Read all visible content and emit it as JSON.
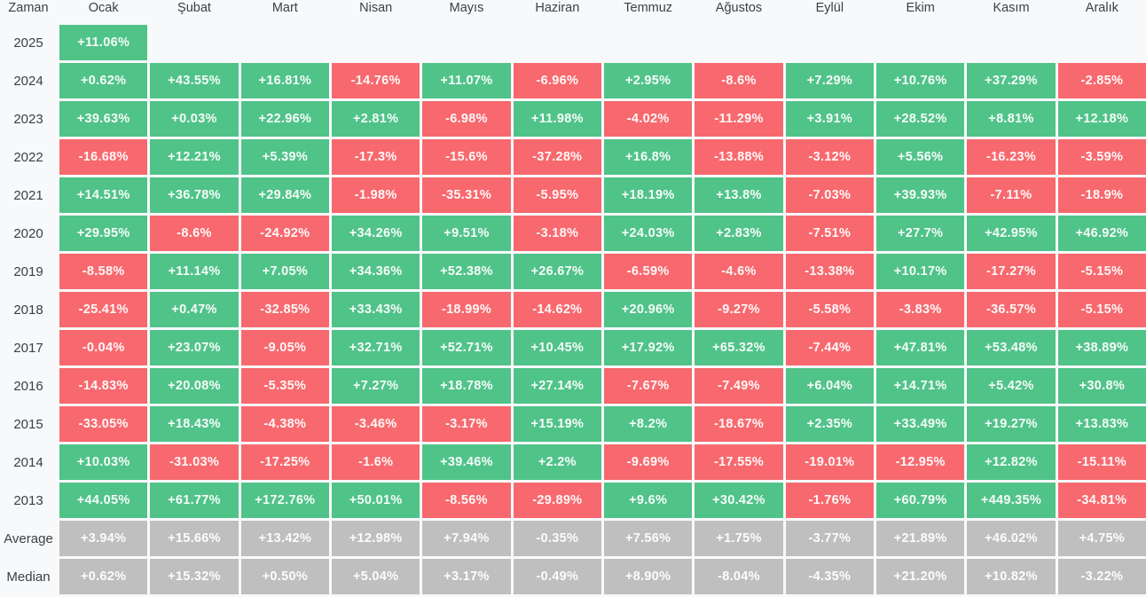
{
  "header": {
    "time_label": "Zaman",
    "months": [
      "Ocak",
      "Şubat",
      "Mart",
      "Nisan",
      "Mayıs",
      "Haziran",
      "Temmuz",
      "Ağustos",
      "Eylül",
      "Ekim",
      "Kasım",
      "Aralık"
    ]
  },
  "colors": {
    "positive": "#50c389",
    "negative": "#f7696e",
    "summary": "#bfbfbf",
    "page_background": "#f8f9fa",
    "cell_text": "#ffffff",
    "label_text": "#3c4043"
  },
  "table": {
    "rows": [
      {
        "label": "2025",
        "type": "year",
        "cells": [
          "+11.06%",
          "",
          "",
          "",
          "",
          "",
          "",
          "",
          "",
          "",
          "",
          ""
        ]
      },
      {
        "label": "2024",
        "type": "year",
        "cells": [
          "+0.62%",
          "+43.55%",
          "+16.81%",
          "-14.76%",
          "+11.07%",
          "-6.96%",
          "+2.95%",
          "-8.6%",
          "+7.29%",
          "+10.76%",
          "+37.29%",
          "-2.85%"
        ]
      },
      {
        "label": "2023",
        "type": "year",
        "cells": [
          "+39.63%",
          "+0.03%",
          "+22.96%",
          "+2.81%",
          "-6.98%",
          "+11.98%",
          "-4.02%",
          "-11.29%",
          "+3.91%",
          "+28.52%",
          "+8.81%",
          "+12.18%"
        ]
      },
      {
        "label": "2022",
        "type": "year",
        "cells": [
          "-16.68%",
          "+12.21%",
          "+5.39%",
          "-17.3%",
          "-15.6%",
          "-37.28%",
          "+16.8%",
          "-13.88%",
          "-3.12%",
          "+5.56%",
          "-16.23%",
          "-3.59%"
        ]
      },
      {
        "label": "2021",
        "type": "year",
        "cells": [
          "+14.51%",
          "+36.78%",
          "+29.84%",
          "-1.98%",
          "-35.31%",
          "-5.95%",
          "+18.19%",
          "+13.8%",
          "-7.03%",
          "+39.93%",
          "-7.11%",
          "-18.9%"
        ]
      },
      {
        "label": "2020",
        "type": "year",
        "cells": [
          "+29.95%",
          "-8.6%",
          "-24.92%",
          "+34.26%",
          "+9.51%",
          "-3.18%",
          "+24.03%",
          "+2.83%",
          "-7.51%",
          "+27.7%",
          "+42.95%",
          "+46.92%"
        ]
      },
      {
        "label": "2019",
        "type": "year",
        "cells": [
          "-8.58%",
          "+11.14%",
          "+7.05%",
          "+34.36%",
          "+52.38%",
          "+26.67%",
          "-6.59%",
          "-4.6%",
          "-13.38%",
          "+10.17%",
          "-17.27%",
          "-5.15%"
        ]
      },
      {
        "label": "2018",
        "type": "year",
        "cells": [
          "-25.41%",
          "+0.47%",
          "-32.85%",
          "+33.43%",
          "-18.99%",
          "-14.62%",
          "+20.96%",
          "-9.27%",
          "-5.58%",
          "-3.83%",
          "-36.57%",
          "-5.15%"
        ]
      },
      {
        "label": "2017",
        "type": "year",
        "cells": [
          "-0.04%",
          "+23.07%",
          "-9.05%",
          "+32.71%",
          "+52.71%",
          "+10.45%",
          "+17.92%",
          "+65.32%",
          "-7.44%",
          "+47.81%",
          "+53.48%",
          "+38.89%"
        ]
      },
      {
        "label": "2016",
        "type": "year",
        "cells": [
          "-14.83%",
          "+20.08%",
          "-5.35%",
          "+7.27%",
          "+18.78%",
          "+27.14%",
          "-7.67%",
          "-7.49%",
          "+6.04%",
          "+14.71%",
          "+5.42%",
          "+30.8%"
        ]
      },
      {
        "label": "2015",
        "type": "year",
        "cells": [
          "-33.05%",
          "+18.43%",
          "-4.38%",
          "-3.46%",
          "-3.17%",
          "+15.19%",
          "+8.2%",
          "-18.67%",
          "+2.35%",
          "+33.49%",
          "+19.27%",
          "+13.83%"
        ]
      },
      {
        "label": "2014",
        "type": "year",
        "cells": [
          "+10.03%",
          "-31.03%",
          "-17.25%",
          "-1.6%",
          "+39.46%",
          "+2.2%",
          "-9.69%",
          "-17.55%",
          "-19.01%",
          "-12.95%",
          "+12.82%",
          "-15.11%"
        ]
      },
      {
        "label": "2013",
        "type": "year",
        "cells": [
          "+44.05%",
          "+61.77%",
          "+172.76%",
          "+50.01%",
          "-8.56%",
          "-29.89%",
          "+9.6%",
          "+30.42%",
          "-1.76%",
          "+60.79%",
          "+449.35%",
          "-34.81%"
        ]
      },
      {
        "label": "Average",
        "type": "summary",
        "cells": [
          "+3.94%",
          "+15.66%",
          "+13.42%",
          "+12.98%",
          "+7.94%",
          "-0.35%",
          "+7.56%",
          "+1.75%",
          "-3.77%",
          "+21.89%",
          "+46.02%",
          "+4.75%"
        ]
      },
      {
        "label": "Median",
        "type": "summary",
        "cells": [
          "+0.62%",
          "+15.32%",
          "+0.50%",
          "+5.04%",
          "+3.17%",
          "-0.49%",
          "+8.90%",
          "-8.04%",
          "-4.35%",
          "+21.20%",
          "+10.82%",
          "-3.22%"
        ]
      }
    ]
  },
  "chart_data": {
    "type": "heatmap",
    "title": "",
    "xlabel": "Zaman",
    "ylabel": "",
    "categories": [
      "Ocak",
      "Şubat",
      "Mart",
      "Nisan",
      "Mayıs",
      "Haziran",
      "Temmuz",
      "Ağustos",
      "Eylül",
      "Ekim",
      "Kasım",
      "Aralık"
    ],
    "series": [
      {
        "name": "2025",
        "values": [
          11.06,
          null,
          null,
          null,
          null,
          null,
          null,
          null,
          null,
          null,
          null,
          null
        ]
      },
      {
        "name": "2024",
        "values": [
          0.62,
          43.55,
          16.81,
          -14.76,
          11.07,
          -6.96,
          2.95,
          -8.6,
          7.29,
          10.76,
          37.29,
          -2.85
        ]
      },
      {
        "name": "2023",
        "values": [
          39.63,
          0.03,
          22.96,
          2.81,
          -6.98,
          11.98,
          -4.02,
          -11.29,
          3.91,
          28.52,
          8.81,
          12.18
        ]
      },
      {
        "name": "2022",
        "values": [
          -16.68,
          12.21,
          5.39,
          -17.3,
          -15.6,
          -37.28,
          16.8,
          -13.88,
          -3.12,
          5.56,
          -16.23,
          -3.59
        ]
      },
      {
        "name": "2021",
        "values": [
          14.51,
          36.78,
          29.84,
          -1.98,
          -35.31,
          -5.95,
          18.19,
          13.8,
          -7.03,
          39.93,
          -7.11,
          -18.9
        ]
      },
      {
        "name": "2020",
        "values": [
          29.95,
          -8.6,
          -24.92,
          34.26,
          9.51,
          -3.18,
          24.03,
          2.83,
          -7.51,
          27.7,
          42.95,
          46.92
        ]
      },
      {
        "name": "2019",
        "values": [
          -8.58,
          11.14,
          7.05,
          34.36,
          52.38,
          26.67,
          -6.59,
          -4.6,
          -13.38,
          10.17,
          -17.27,
          -5.15
        ]
      },
      {
        "name": "2018",
        "values": [
          -25.41,
          0.47,
          -32.85,
          33.43,
          -18.99,
          -14.62,
          20.96,
          -9.27,
          -5.58,
          -3.83,
          -36.57,
          -5.15
        ]
      },
      {
        "name": "2017",
        "values": [
          -0.04,
          23.07,
          -9.05,
          32.71,
          52.71,
          10.45,
          17.92,
          65.32,
          -7.44,
          47.81,
          53.48,
          38.89
        ]
      },
      {
        "name": "2016",
        "values": [
          -14.83,
          20.08,
          -5.35,
          7.27,
          18.78,
          27.14,
          -7.67,
          -7.49,
          6.04,
          14.71,
          5.42,
          30.8
        ]
      },
      {
        "name": "2015",
        "values": [
          -33.05,
          18.43,
          -4.38,
          -3.46,
          -3.17,
          15.19,
          8.2,
          -18.67,
          2.35,
          33.49,
          19.27,
          13.83
        ]
      },
      {
        "name": "2014",
        "values": [
          10.03,
          -31.03,
          -17.25,
          -1.6,
          39.46,
          2.2,
          -9.69,
          -17.55,
          -19.01,
          -12.95,
          12.82,
          -15.11
        ]
      },
      {
        "name": "2013",
        "values": [
          44.05,
          61.77,
          172.76,
          50.01,
          -8.56,
          -29.89,
          9.6,
          30.42,
          -1.76,
          60.79,
          449.35,
          -34.81
        ]
      },
      {
        "name": "Average",
        "values": [
          3.94,
          15.66,
          13.42,
          12.98,
          7.94,
          -0.35,
          7.56,
          1.75,
          -3.77,
          21.89,
          46.02,
          4.75
        ]
      },
      {
        "name": "Median",
        "values": [
          0.62,
          15.32,
          0.5,
          5.04,
          3.17,
          -0.49,
          8.9,
          -8.04,
          -4.35,
          21.2,
          10.82,
          -3.22
        ]
      }
    ],
    "legend_position": "none",
    "grid": false,
    "color_rule": "green = positive monthly return, red = negative monthly return, gray = Average/Median summary rows"
  }
}
